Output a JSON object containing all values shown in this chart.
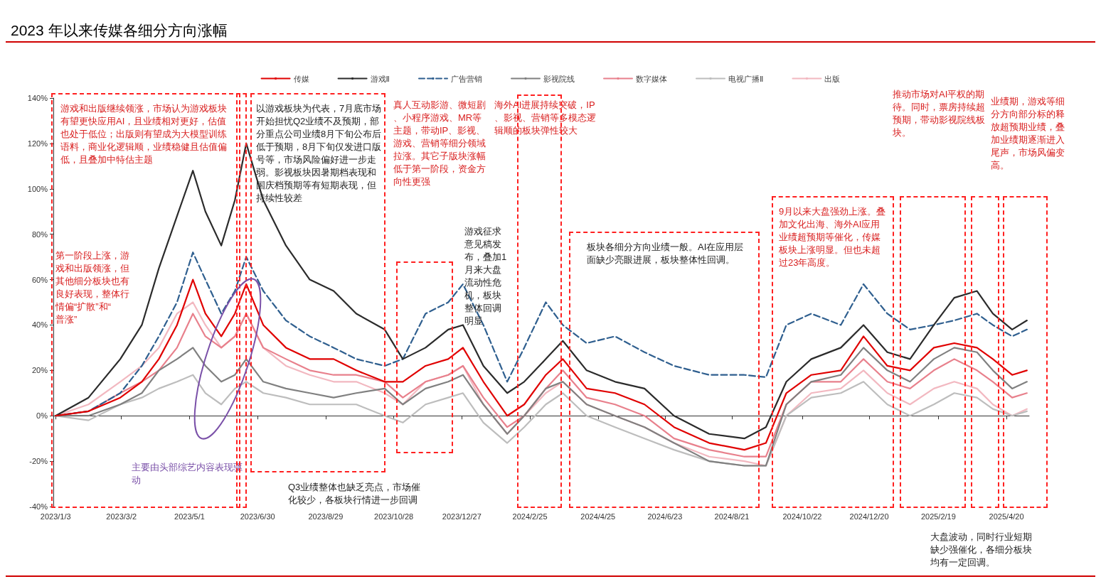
{
  "chart_data": {
    "type": "line",
    "title": "2023 年以来传媒各细分方向涨幅",
    "x": [
      "2023-01-03",
      "2023-02-01",
      "2023-03-01",
      "2023-03-20",
      "2023-04-04",
      "2023-04-20",
      "2023-05-04",
      "2023-05-15",
      "2023-05-29",
      "2023-06-10",
      "2023-06-20",
      "2023-07-05",
      "2023-07-25",
      "2023-08-15",
      "2023-09-05",
      "2023-09-25",
      "2023-10-20",
      "2023-11-05",
      "2023-11-25",
      "2023-12-15",
      "2023-12-28",
      "2024-01-15",
      "2024-02-05",
      "2024-02-20",
      "2024-03-10",
      "2024-03-25",
      "2024-04-15",
      "2024-05-10",
      "2024-06-05",
      "2024-07-01",
      "2024-08-01",
      "2024-09-01",
      "2024-09-20",
      "2024-10-08",
      "2024-10-30",
      "2024-11-25",
      "2024-12-15",
      "2025-01-05",
      "2025-01-25",
      "2025-02-15",
      "2025-03-05",
      "2025-03-25",
      "2025-04-08",
      "2025-04-25",
      "2025-05-08"
    ],
    "series": [
      {
        "name": "传媒",
        "color": "#e00000",
        "values": [
          0,
          2,
          8,
          15,
          25,
          40,
          60,
          45,
          35,
          45,
          58,
          40,
          30,
          25,
          25,
          20,
          15,
          15,
          22,
          25,
          30,
          15,
          0,
          5,
          18,
          25,
          12,
          10,
          5,
          -5,
          -12,
          -15,
          -12,
          10,
          18,
          20,
          35,
          22,
          20,
          30,
          32,
          30,
          25,
          18,
          20
        ]
      },
      {
        "name": "游戏Ⅱ",
        "color": "#2b2b2b",
        "values": [
          0,
          8,
          25,
          40,
          65,
          88,
          108,
          90,
          75,
          95,
          120,
          95,
          75,
          60,
          55,
          45,
          38,
          25,
          30,
          38,
          40,
          22,
          10,
          15,
          25,
          33,
          20,
          15,
          12,
          0,
          -8,
          -10,
          -5,
          15,
          25,
          30,
          40,
          28,
          25,
          40,
          52,
          55,
          45,
          38,
          42
        ]
      },
      {
        "name": "广告营销",
        "color": "#2f5f8f",
        "line_style": "dashed",
        "values": [
          0,
          2,
          10,
          22,
          35,
          50,
          72,
          60,
          45,
          55,
          70,
          55,
          42,
          35,
          30,
          25,
          22,
          25,
          45,
          50,
          58,
          40,
          15,
          30,
          50,
          40,
          32,
          35,
          28,
          22,
          18,
          18,
          17,
          40,
          45,
          40,
          58,
          45,
          38,
          40,
          42,
          45,
          40,
          35,
          38
        ]
      },
      {
        "name": "影视院线",
        "color": "#808080",
        "values": [
          0,
          0,
          5,
          10,
          20,
          25,
          30,
          22,
          15,
          18,
          25,
          15,
          12,
          10,
          8,
          10,
          12,
          5,
          12,
          15,
          18,
          5,
          -8,
          0,
          12,
          15,
          5,
          0,
          -5,
          -12,
          -20,
          -22,
          -22,
          5,
          15,
          18,
          30,
          20,
          15,
          25,
          30,
          28,
          20,
          12,
          15
        ]
      },
      {
        "name": "数字媒体",
        "color": "#e8808c",
        "values": [
          0,
          2,
          10,
          15,
          20,
          30,
          45,
          35,
          30,
          35,
          45,
          30,
          25,
          20,
          18,
          18,
          15,
          8,
          15,
          18,
          22,
          8,
          -5,
          0,
          12,
          20,
          8,
          5,
          0,
          -10,
          -15,
          -18,
          -18,
          5,
          15,
          15,
          25,
          15,
          12,
          20,
          25,
          20,
          15,
          8,
          10
        ]
      },
      {
        "name": "电视广播Ⅱ",
        "color": "#bdbdbd",
        "values": [
          0,
          -2,
          5,
          8,
          12,
          15,
          18,
          10,
          5,
          12,
          15,
          10,
          8,
          5,
          5,
          5,
          0,
          -3,
          5,
          8,
          10,
          -3,
          -12,
          -5,
          5,
          10,
          0,
          -5,
          -10,
          -15,
          -20,
          -22,
          -22,
          0,
          8,
          10,
          15,
          5,
          0,
          5,
          10,
          8,
          3,
          0,
          2
        ]
      },
      {
        "name": "出版",
        "color": "#f2b8c0",
        "values": [
          0,
          5,
          15,
          22,
          30,
          45,
          50,
          40,
          30,
          35,
          45,
          30,
          22,
          18,
          15,
          15,
          10,
          5,
          15,
          18,
          22,
          5,
          -8,
          0,
          10,
          15,
          5,
          0,
          -5,
          -12,
          -18,
          -20,
          -22,
          0,
          10,
          12,
          20,
          10,
          5,
          12,
          15,
          12,
          5,
          0,
          3
        ]
      }
    ],
    "xlim": [
      "2023-01-01",
      "2025-05-10"
    ],
    "xticks": [
      {
        "value": "2023-01-03",
        "label": "2023/1/3"
      },
      {
        "value": "2023-03-02",
        "label": "2023/3/2"
      },
      {
        "value": "2023-05-01",
        "label": "2023/5/1"
      },
      {
        "value": "2023-06-30",
        "label": "2023/6/30"
      },
      {
        "value": "2023-08-29",
        "label": "2023/8/29"
      },
      {
        "value": "2023-10-28",
        "label": "2023/10/28"
      },
      {
        "value": "2023-12-27",
        "label": "2023/12/27"
      },
      {
        "value": "2024-02-25",
        "label": "2024/2/25"
      },
      {
        "value": "2024-04-25",
        "label": "2024/4/25"
      },
      {
        "value": "2024-06-23",
        "label": "2024/6/23"
      },
      {
        "value": "2024-08-21",
        "label": "2024/8/21"
      },
      {
        "value": "2024-10-22",
        "label": "2024/10/22"
      },
      {
        "value": "2024-12-20",
        "label": "2024/12/20"
      },
      {
        "value": "2025-02-19",
        "label": "2025/2/19"
      },
      {
        "value": "2025-04-20",
        "label": "2025/4/20"
      }
    ],
    "ylim": [
      -40,
      140
    ],
    "yticks": [
      {
        "value": -40,
        "label": "-40%"
      },
      {
        "value": -20,
        "label": "-20%"
      },
      {
        "value": 0,
        "label": "0%"
      },
      {
        "value": 20,
        "label": "20%"
      },
      {
        "value": 40,
        "label": "40%"
      },
      {
        "value": 60,
        "label": "60%"
      },
      {
        "value": 80,
        "label": "80%"
      },
      {
        "value": 100,
        "label": "100%"
      },
      {
        "value": 120,
        "label": "120%"
      },
      {
        "value": 140,
        "label": "140%"
      }
    ],
    "annotations": [
      "游戏和出版继续领涨，市场认为游戏板块有望更快应用AI，且业绩相对更好，估值也处于低位；出版则有望成为大模型训练语料，商业化逻辑顺，业绩稳健且估值偏低，且叠加中特估主题",
      "第一阶段上涨，游戏和出版领涨，但其他细分板块也有良好表现，整体行情偏“扩散”和“普涨”",
      "主要由头部综艺内容表现驱动",
      "以游戏板块为代表，7月底市场开始担忧Q2业绩不及预期，部分重点公司业绩8月下旬公布后低于预期，8月下旬仅发进口版号等，市场风险偏好进一步走弱。影视板块因暑期档表现和国庆档预期等有短期表现，但持续性较差",
      "Q3业绩整体也缺乏亮点，市场催化较少，各板块行情进一步回调",
      "真人互动影游、微短剧、小程序游戏、MR等主题，带动IP、影视、游戏、营销等细分领域拉涨。其它子版块涨幅低于第一阶段，资金方向性更强",
      "游戏征求意见稿发布，叠加1月来大盘流动性危机，板块整体回调明显",
      "海外AI进展持续突破，IP、影视、营销等多模态逻辑顺的板块弹性较大",
      "板块各细分方向业绩一般。AI在应用层面缺少亮眼进展，板块整体性回调。",
      "9月以来大盘强劲上涨。叠加文化出海、海外AI应用业绩超预期等催化，传媒板块上涨明显。但也未超过23年高度。",
      "推动市场对AI平权的期待。同时，票房持续超预期，带动影视院线板块。",
      "业绩期，游戏等细分方向部分标的释放超预期业绩，叠加业绩期逐渐进入尾声，市场风偏变高。",
      "大盘波动，同时行业短期缺少强催化，各细分板块均有一定回调。"
    ],
    "legend": "top",
    "marker": "none"
  }
}
